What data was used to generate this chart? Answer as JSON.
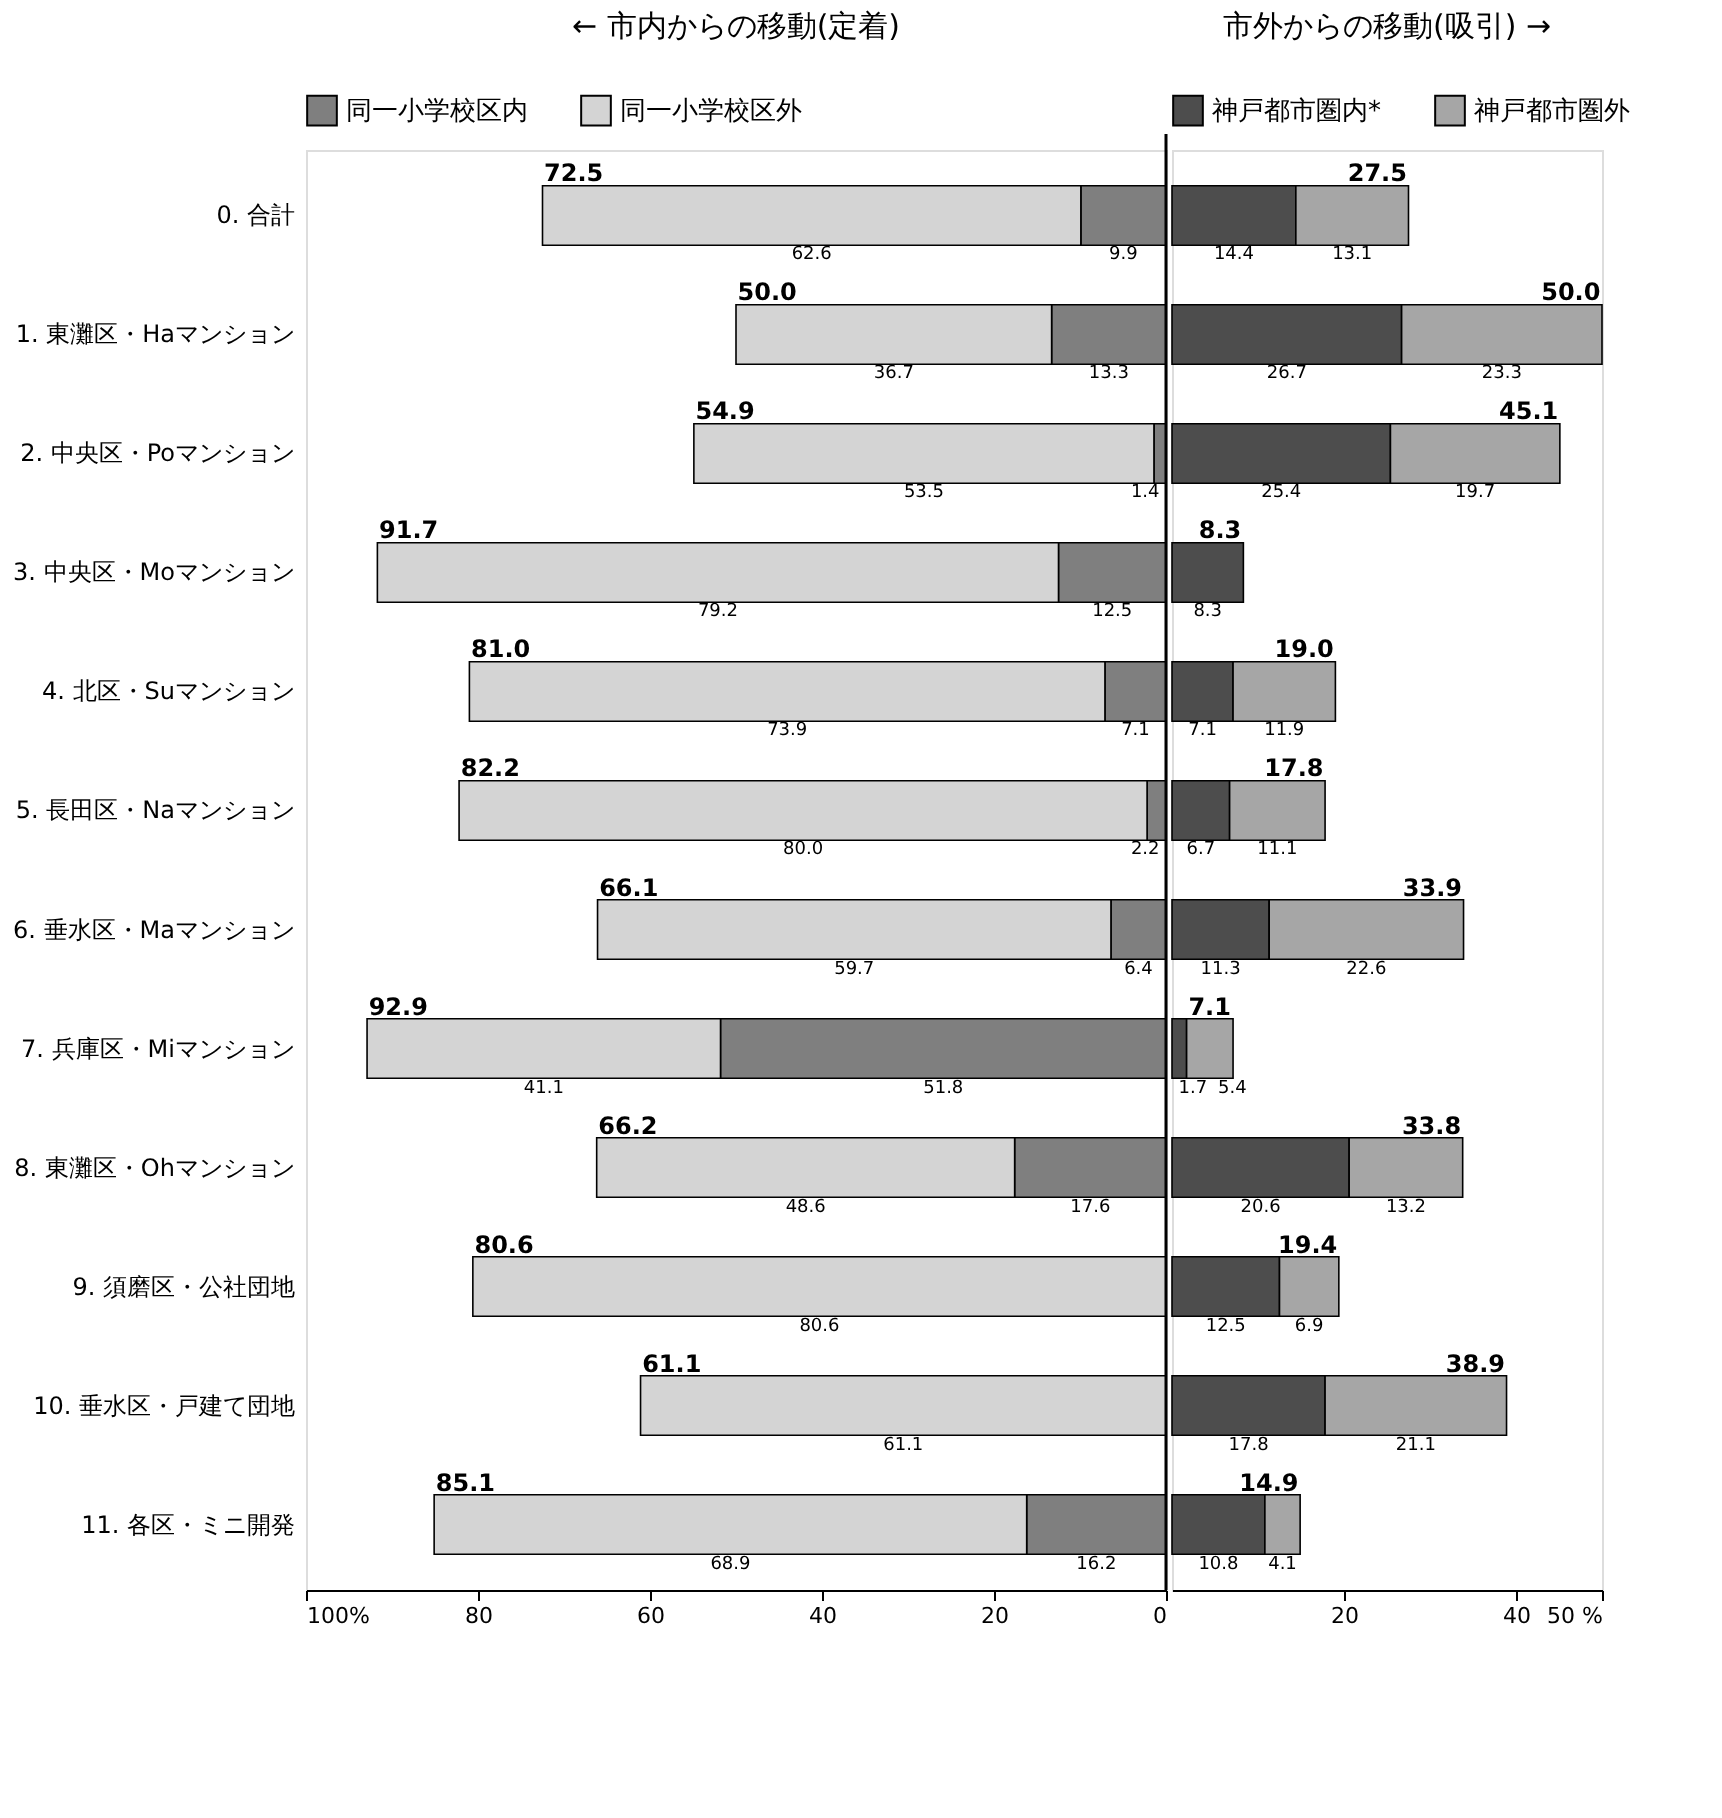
{
  "chart_data": [
    {
      "type": "bar",
      "orientation": "horizontal",
      "stacked": true,
      "categories": [
        "0. 合計",
        "1. 東灘区・Haマンション",
        "2. 中央区・Poマンション",
        "3. 中央区・Moマンション",
        "4. 北区・Suマンション",
        "5. 長田区・Naマンション",
        "6. 垂水区・Maマンション",
        "7. 兵庫区・Miマンション",
        "8. 東灘区・Ohマンション",
        "9. 須磨区・公社団地",
        "10. 垂水区・戸建て団地",
        "11. 各区・ミニ開発"
      ],
      "series": [
        {
          "name": "同一小学校区内",
          "color": "#7f7f7f",
          "values": [
            9.9,
            13.3,
            1.4,
            12.5,
            7.1,
            2.2,
            6.4,
            51.8,
            17.6,
            0,
            0,
            16.2
          ],
          "value_labels": [
            "9.9",
            "13.3",
            "1.4",
            "12.5",
            "7.1",
            "2.2",
            "6.4",
            "51.8",
            "17.6",
            null,
            null,
            "16.2"
          ]
        },
        {
          "name": "同一小学校区外",
          "color": "#d4d4d4",
          "values": [
            62.6,
            36.7,
            53.5,
            79.2,
            73.9,
            80.0,
            59.7,
            41.1,
            48.6,
            80.6,
            61.1,
            68.9
          ],
          "value_labels": [
            "62.6",
            "36.7",
            "53.5",
            "79.2",
            "73.9",
            "80.0",
            "59.7",
            "41.1",
            "48.6",
            "80.6",
            "61.1",
            "68.9"
          ]
        }
      ],
      "totals": [
        "72.5",
        "50.0",
        "54.9",
        "91.7",
        "81.0",
        "82.2",
        "66.1",
        "92.9",
        "66.2",
        "80.6",
        "61.1",
        "85.1"
      ],
      "xlim": [
        100,
        0
      ],
      "xticks": [
        {
          "value": 100,
          "label": "100%"
        },
        80,
        60,
        40,
        20,
        0
      ],
      "ref_lines": [
        {
          "axis": "x",
          "value": 0,
          "color": "#000000"
        }
      ],
      "annotations": [
        "← 市内からの移動(定着)"
      ],
      "legend": "top",
      "grid": false
    },
    {
      "type": "bar",
      "orientation": "horizontal",
      "stacked": true,
      "categories": [
        "0. 合計",
        "1. 東灘区・Haマンション",
        "2. 中央区・Poマンション",
        "3. 中央区・Moマンション",
        "4. 北区・Suマンション",
        "5. 長田区・Naマンション",
        "6. 垂水区・Maマンション",
        "7. 兵庫区・Miマンション",
        "8. 東灘区・Ohマンション",
        "9. 須磨区・公社団地",
        "10. 垂水区・戸建て団地",
        "11. 各区・ミニ開発"
      ],
      "series": [
        {
          "name": "神戸都市圏内*",
          "color": "#4d4d4d",
          "values": [
            14.4,
            26.7,
            25.4,
            8.3,
            7.1,
            6.7,
            11.3,
            1.7,
            20.6,
            12.5,
            17.8,
            10.8
          ],
          "value_labels": [
            "14.4",
            "26.7",
            "25.4",
            "8.3",
            "7.1",
            "6.7",
            "11.3",
            "1.7",
            "20.6",
            "12.5",
            "17.8",
            "10.8"
          ]
        },
        {
          "name": "神戸都市圏外",
          "color": "#a6a6a6",
          "values": [
            13.1,
            23.3,
            19.7,
            0,
            11.9,
            11.1,
            22.6,
            5.4,
            13.2,
            6.9,
            21.1,
            4.1
          ],
          "value_labels": [
            "13.1",
            "23.3",
            "19.7",
            null,
            "11.9",
            "11.1",
            "22.6",
            "5.4",
            "13.2",
            "6.9",
            "21.1",
            "4.1"
          ]
        }
      ],
      "totals": [
        "27.5",
        "50.0",
        "45.1",
        "8.3",
        "19.0",
        "17.8",
        "33.9",
        "7.1",
        "33.8",
        "19.4",
        "38.9",
        "14.9"
      ],
      "xlim": [
        0,
        50
      ],
      "xticks": [
        20,
        40,
        {
          "value": 50,
          "label": "50 %"
        }
      ],
      "annotations": [
        "市外からの移動(吸引) →"
      ],
      "tick_labels": "x",
      "legend": "top",
      "grid": false
    }
  ]
}
